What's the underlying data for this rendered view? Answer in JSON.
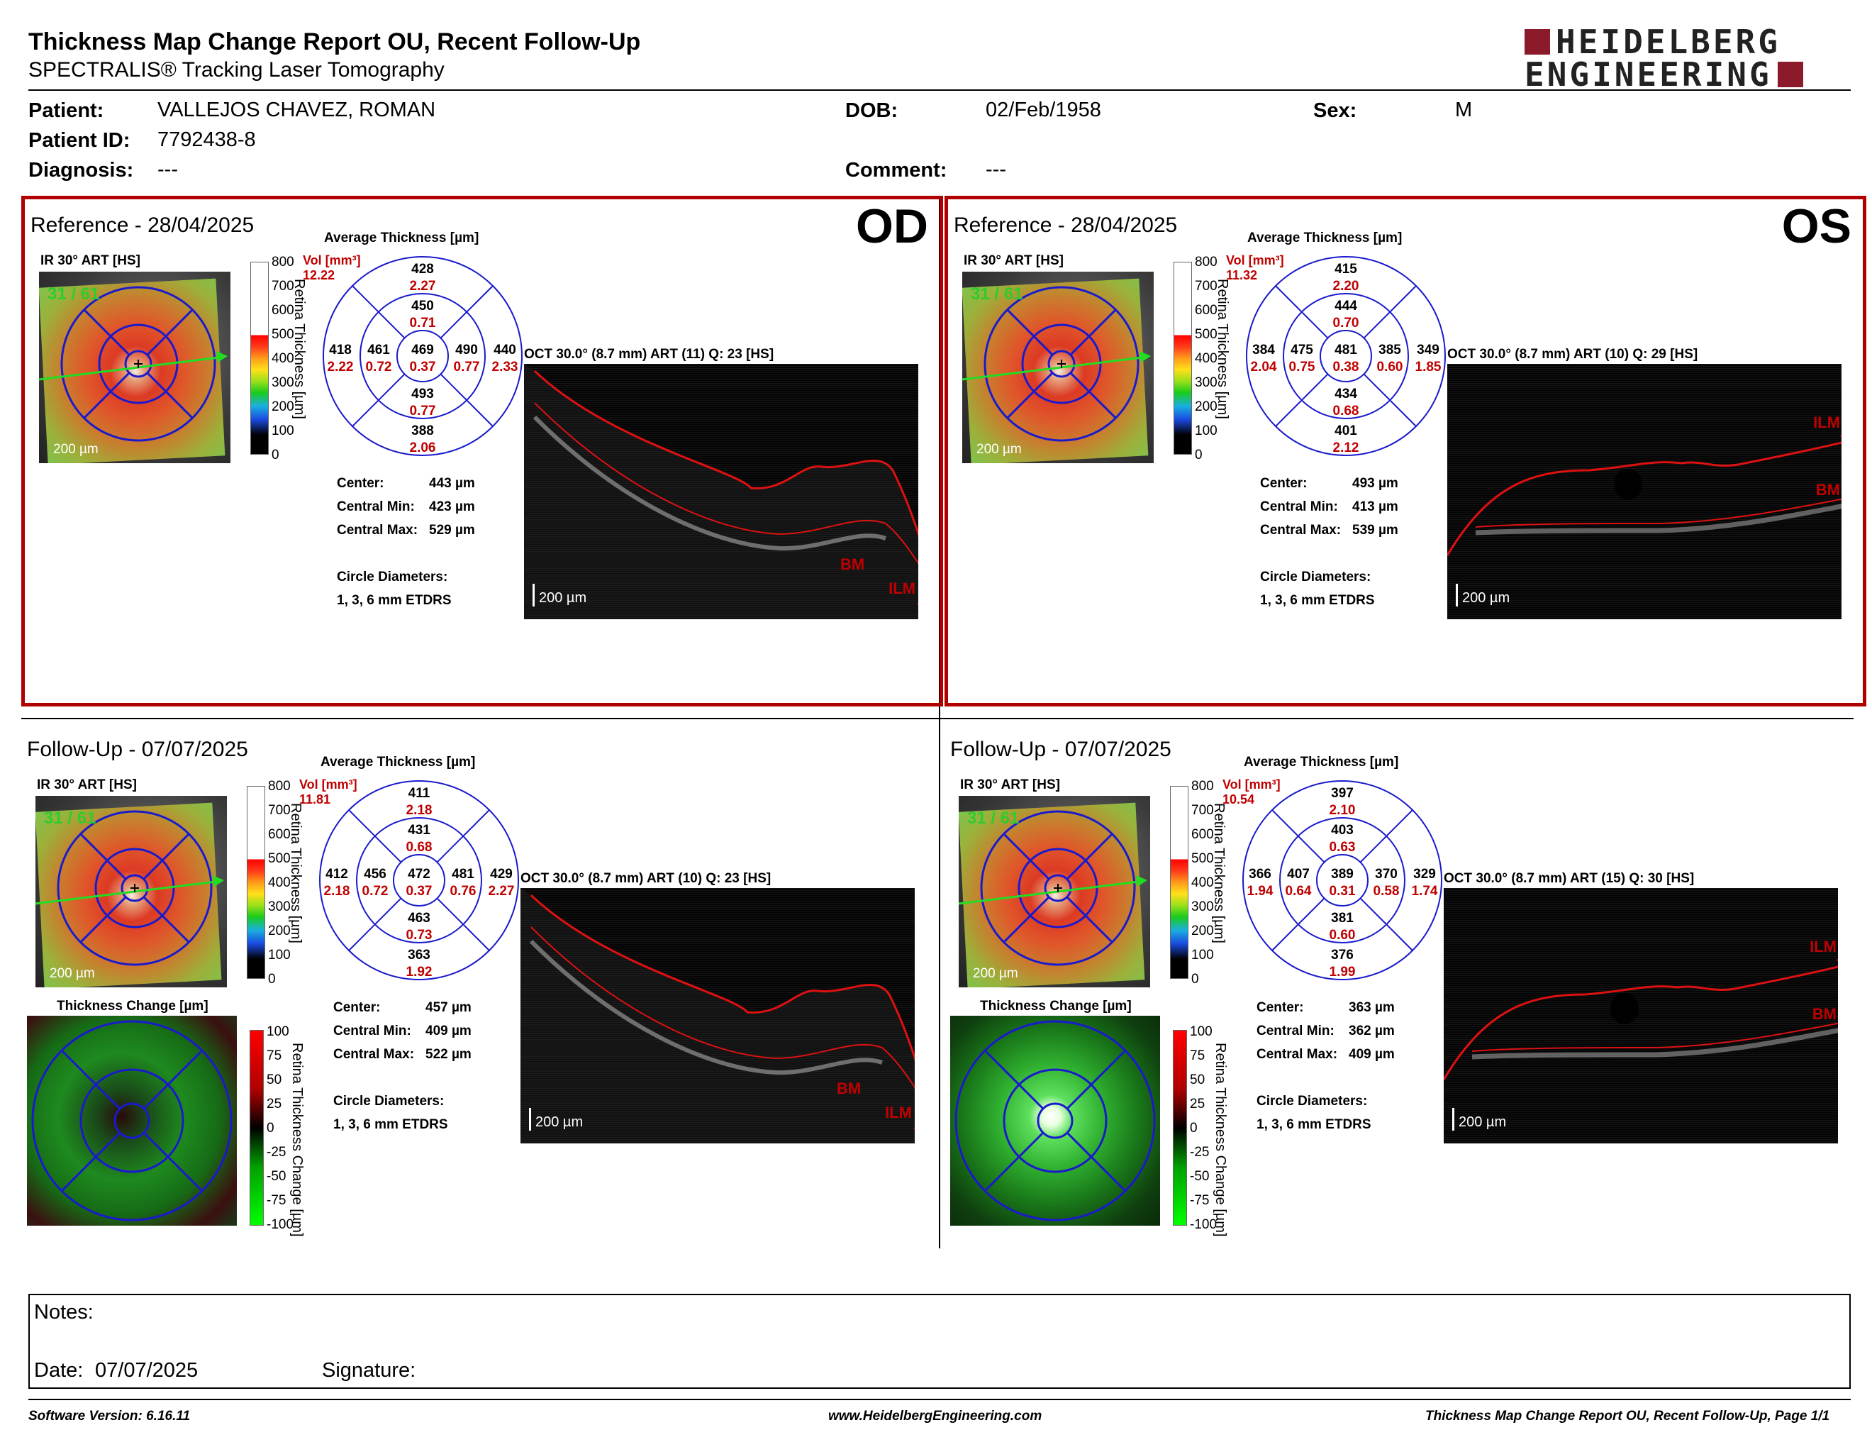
{
  "header": {
    "title": "Thickness Map Change Report OU, Recent Follow-Up",
    "subtitle": "SPECTRALIS® Tracking Laser Tomography",
    "logo_line1": "HEIDELBERG",
    "logo_line2": "ENGINEERING",
    "brand_color": "#8b1a2b"
  },
  "patient": {
    "patient_label": "Patient:",
    "patient_value": "VALLEJOS CHAVEZ, ROMAN",
    "dob_label": "DOB:",
    "dob_value": "02/Feb/1958",
    "sex_label": "Sex:",
    "sex_value": "M",
    "id_label": "Patient ID:",
    "id_value": "7792438-8",
    "diagnosis_label": "Diagnosis:",
    "diagnosis_value": "---",
    "comment_label": "Comment:",
    "comment_value": "---"
  },
  "common": {
    "ir_label": "IR 30° ART [HS]",
    "ir_ratio": "31 / 61",
    "scale_label": "200 µm",
    "avg_thickness_label": "Average Thickness [µm]",
    "vol_label": "Vol [mm³]",
    "center_label": "Center:",
    "central_min_label": "Central Min:",
    "central_max_label": "Central Max:",
    "circle_diam_label": "Circle Diameters:",
    "circle_diam_value": "1, 3, 6 mm ETDRS",
    "thickness_axis_label": "Retina Thickness [µm]",
    "thickness_ticks": [
      "800",
      "700",
      "600",
      "500",
      "400",
      "300",
      "200",
      "100",
      "0"
    ],
    "change_label": "Thickness Change [µm]",
    "change_axis_label": "Retina Thickness Change [µm]",
    "change_ticks": [
      "100",
      "75",
      "50",
      "25",
      "0",
      "-25",
      "-50",
      "-75",
      "-100"
    ],
    "ilm_label": "ILM",
    "bm_label": "BM",
    "reference_border_color": "#b00000",
    "grid_color": "#1a1acc",
    "value_red": "#c00000"
  },
  "panels": {
    "od_ref": {
      "section_title": "Reference - 28/04/2025",
      "eye": "OD",
      "oct_label": "OCT 30.0° (8.7 mm) ART (11) Q: 23 [HS]",
      "vol_total": "12.22",
      "etdrs": {
        "center": {
          "t": "469",
          "v": "0.37"
        },
        "inner_sup": {
          "t": "450",
          "v": "0.71"
        },
        "inner_inf": {
          "t": "493",
          "v": "0.77"
        },
        "inner_left": {
          "t": "461",
          "v": "0.72"
        },
        "inner_right": {
          "t": "490",
          "v": "0.77"
        },
        "outer_sup": {
          "t": "428",
          "v": "2.27"
        },
        "outer_inf": {
          "t": "388",
          "v": "2.06"
        },
        "outer_left": {
          "t": "418",
          "v": "2.22"
        },
        "outer_right": {
          "t": "440",
          "v": "2.33"
        }
      },
      "center_value": "443 µm",
      "central_min_value": "423 µm",
      "central_max_value": "529 µm"
    },
    "os_ref": {
      "section_title": "Reference - 28/04/2025",
      "eye": "OS",
      "oct_label": "OCT 30.0° (8.7 mm) ART (10) Q: 29 [HS]",
      "vol_total": "11.32",
      "etdrs": {
        "center": {
          "t": "481",
          "v": "0.38"
        },
        "inner_sup": {
          "t": "444",
          "v": "0.70"
        },
        "inner_inf": {
          "t": "434",
          "v": "0.68"
        },
        "inner_left": {
          "t": "475",
          "v": "0.75"
        },
        "inner_right": {
          "t": "385",
          "v": "0.60"
        },
        "outer_sup": {
          "t": "415",
          "v": "2.20"
        },
        "outer_inf": {
          "t": "401",
          "v": "2.12"
        },
        "outer_left": {
          "t": "384",
          "v": "2.04"
        },
        "outer_right": {
          "t": "349",
          "v": "1.85"
        }
      },
      "center_value": "493 µm",
      "central_min_value": "413 µm",
      "central_max_value": "539 µm"
    },
    "od_fu": {
      "section_title": "Follow-Up - 07/07/2025",
      "oct_label": "OCT 30.0° (8.7 mm) ART (10) Q: 23 [HS]",
      "vol_total": "11.81",
      "etdrs": {
        "center": {
          "t": "472",
          "v": "0.37"
        },
        "inner_sup": {
          "t": "431",
          "v": "0.68"
        },
        "inner_inf": {
          "t": "463",
          "v": "0.73"
        },
        "inner_left": {
          "t": "456",
          "v": "0.72"
        },
        "inner_right": {
          "t": "481",
          "v": "0.76"
        },
        "outer_sup": {
          "t": "411",
          "v": "2.18"
        },
        "outer_inf": {
          "t": "363",
          "v": "1.92"
        },
        "outer_left": {
          "t": "412",
          "v": "2.18"
        },
        "outer_right": {
          "t": "429",
          "v": "2.27"
        }
      },
      "center_value": "457 µm",
      "central_min_value": "409 µm",
      "central_max_value": "522 µm"
    },
    "os_fu": {
      "section_title": "Follow-Up - 07/07/2025",
      "oct_label": "OCT 30.0° (8.7 mm) ART (15) Q: 30 [HS]",
      "vol_total": "10.54",
      "etdrs": {
        "center": {
          "t": "389",
          "v": "0.31"
        },
        "inner_sup": {
          "t": "403",
          "v": "0.63"
        },
        "inner_inf": {
          "t": "381",
          "v": "0.60"
        },
        "inner_left": {
          "t": "407",
          "v": "0.64"
        },
        "inner_right": {
          "t": "370",
          "v": "0.58"
        },
        "outer_sup": {
          "t": "397",
          "v": "2.10"
        },
        "outer_inf": {
          "t": "376",
          "v": "1.99"
        },
        "outer_left": {
          "t": "366",
          "v": "1.94"
        },
        "outer_right": {
          "t": "329",
          "v": "1.74"
        }
      },
      "center_value": "363 µm",
      "central_min_value": "362 µm",
      "central_max_value": "409 µm"
    }
  },
  "notes": {
    "notes_label": "Notes:",
    "date_label": "Date:",
    "date_value": "07/07/2025",
    "signature_label": "Signature:"
  },
  "footer": {
    "software": "Software Version: 6.16.11",
    "website": "www.HeidelbergEngineering.com",
    "page_info": "Thickness Map Change Report OU, Recent Follow-Up, Page 1/1"
  }
}
